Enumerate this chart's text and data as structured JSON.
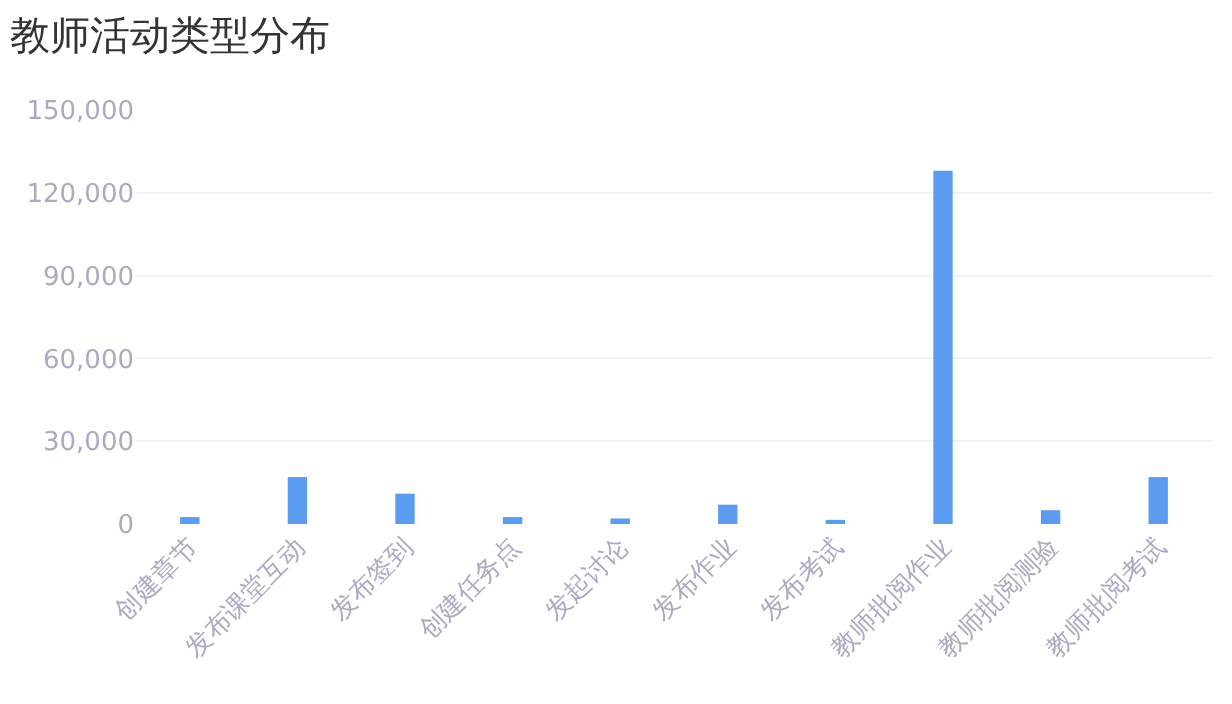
{
  "chart_data": {
    "type": "bar",
    "title": "教师活动类型分布",
    "categories": [
      "创建章节",
      "发布课堂互动",
      "发布签到",
      "创建任务点",
      "发起讨论",
      "发布作业",
      "发布考试",
      "教师批阅作业",
      "教师批阅测验",
      "教师批阅考试"
    ],
    "values": [
      2500,
      17000,
      11000,
      2500,
      2000,
      7000,
      1500,
      128000,
      5000,
      17000
    ],
    "color": "#5b9cf0",
    "ylim": [
      0,
      150000
    ],
    "yticks": [
      {
        "value": 0,
        "label": "0"
      },
      {
        "value": 30000,
        "label": "30,000"
      },
      {
        "value": 60000,
        "label": "60,000"
      },
      {
        "value": 90000,
        "label": "90,000"
      },
      {
        "value": 120000,
        "label": "120,000"
      },
      {
        "value": 150000,
        "label": "150,000"
      }
    ],
    "grid": "y"
  }
}
